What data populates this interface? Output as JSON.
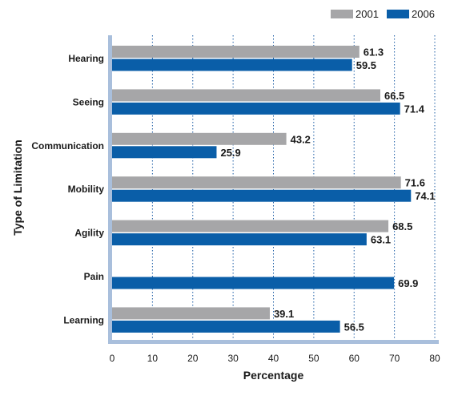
{
  "chart_data": {
    "type": "bar",
    "orientation": "horizontal",
    "categories": [
      "Hearing",
      "Seeing",
      "Communication",
      "Mobility",
      "Agility",
      "Pain",
      "Learning"
    ],
    "series": [
      {
        "name": "2001",
        "color": "#a6a6a8",
        "values": [
          61.3,
          66.5,
          43.2,
          71.6,
          68.5,
          null,
          39.1
        ]
      },
      {
        "name": "2006",
        "color": "#0a5ea8",
        "values": [
          59.5,
          71.4,
          25.9,
          74.1,
          63.1,
          69.9,
          56.5
        ]
      }
    ],
    "title": "",
    "xlabel": "Percentage",
    "ylabel": "Type of Limitation",
    "xlim": [
      0,
      80
    ],
    "xticks": [
      0,
      10,
      20,
      30,
      40,
      50,
      60,
      70,
      80
    ],
    "grid": "vertical-dotted",
    "legend_position": "top-right",
    "axis_color": "#a9bfdc",
    "grid_color": "#1f5fa6"
  }
}
